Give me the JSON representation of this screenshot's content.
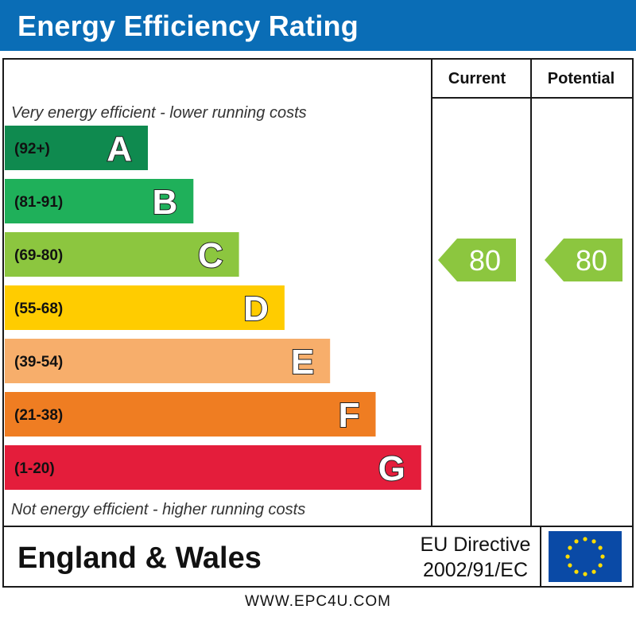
{
  "header": {
    "title": "Energy Efficiency Rating"
  },
  "chart_data": {
    "type": "bar",
    "columns": {
      "current": "Current",
      "potential": "Potential"
    },
    "top_caption": "Very energy efficient - lower running costs",
    "bottom_caption": "Not energy efficient - higher running costs",
    "bands": [
      {
        "letter": "A",
        "range": "(92+)",
        "color": "#0f8a4f"
      },
      {
        "letter": "B",
        "range": "(81-91)",
        "color": "#1fb05a"
      },
      {
        "letter": "C",
        "range": "(69-80)",
        "color": "#8cc63f"
      },
      {
        "letter": "D",
        "range": "(55-68)",
        "color": "#ffcc00"
      },
      {
        "letter": "E",
        "range": "(39-54)",
        "color": "#f7ae6b"
      },
      {
        "letter": "F",
        "range": "(21-38)",
        "color": "#ef7d22"
      },
      {
        "letter": "G",
        "range": "(1-20)",
        "color": "#e41d3b"
      }
    ],
    "current": {
      "value": 80,
      "text": "80",
      "color": "#8cc63f"
    },
    "potential": {
      "value": 80,
      "text": "80",
      "color": "#8cc63f"
    },
    "region": "England & Wales",
    "directive_line1": "EU Directive",
    "directive_line2": "2002/91/EC",
    "flag_color": "#0a4aa6",
    "star_color": "#ffdd00"
  },
  "footer": {
    "text": "WWW.EPC4U.COM"
  }
}
